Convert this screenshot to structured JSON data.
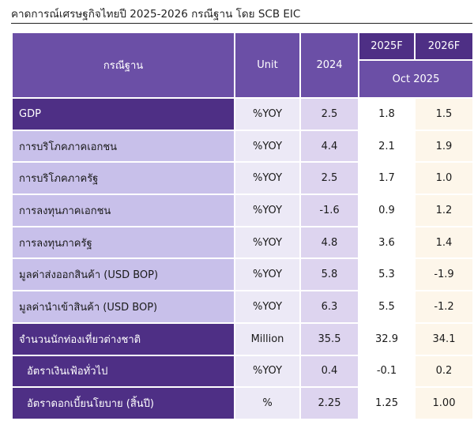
{
  "title": "คาดการณ์เศรษฐกิจไทยปี 2025-2026 กรณีฐาน โดย SCB EIC",
  "header": {
    "scenario": "กรณีฐาน",
    "unit": "Unit",
    "y2024": "2024",
    "y2025": "2025F",
    "y2026": "2026F",
    "forecast_as_of": "Oct 2025"
  },
  "rows": [
    {
      "label": "GDP",
      "unit": "%YOY",
      "v2024": "2.5",
      "v2025": "1.8",
      "v2026": "1.5"
    },
    {
      "label": "การบริโภคภาคเอกชน",
      "unit": "%YOY",
      "v2024": "4.4",
      "v2025": "2.1",
      "v2026": "1.9"
    },
    {
      "label": "การบริโภคภาครัฐ",
      "unit": "%YOY",
      "v2024": "2.5",
      "v2025": "1.7",
      "v2026": "1.0"
    },
    {
      "label": "การลงทุนภาคเอกชน",
      "unit": "%YOY",
      "v2024": "-1.6",
      "v2025": "0.9",
      "v2026": "1.2"
    },
    {
      "label": "การลงทุนภาครัฐ",
      "unit": "%YOY",
      "v2024": "4.8",
      "v2025": "3.6",
      "v2026": "1.4"
    },
    {
      "label": "มูลค่าส่งออกสินค้า  (USD BOP)",
      "unit": "%YOY",
      "v2024": "5.8",
      "v2025": "5.3",
      "v2026": "-1.9"
    },
    {
      "label": "มูลค่านำเข้าสินค้า  (USD BOP)",
      "unit": "%YOY",
      "v2024": "6.3",
      "v2025": "5.5",
      "v2026": "-1.2"
    },
    {
      "label": "จำนวนนักท่องเที่ยวต่างชาติ",
      "unit": "Million",
      "v2024": "35.5",
      "v2025": "32.9",
      "v2026": "34.1"
    },
    {
      "label": "อัตราเงินเฟ้อทั่วไป",
      "unit": "%YOY",
      "v2024": "0.4",
      "v2025": "-0.1",
      "v2026": "0.2"
    },
    {
      "label": "อัตราดอกเบี้ยนโยบาย  (สิ้นปี)",
      "unit": "%",
      "v2024": "2.25",
      "v2025": "1.25",
      "v2026": "1.00"
    }
  ],
  "colors": {
    "header_purple": "#6b4fa6",
    "deep_purple": "#4e2f85",
    "light_lavender": "#c8c0ea"
  }
}
